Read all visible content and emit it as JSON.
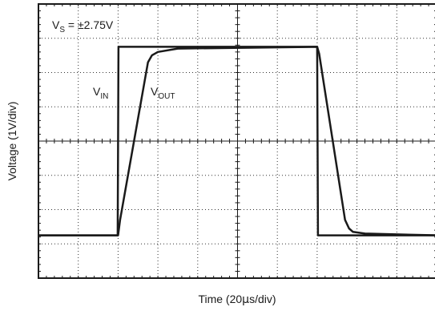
{
  "chart_data": {
    "type": "line",
    "annotation": {
      "main": "V",
      "sub": "S",
      "tail": " = ±2.75V"
    },
    "xlabel": {
      "before": "Time (20",
      "mu": "μ",
      "after": "s/div)"
    },
    "ylabel": "Voltage (1V/div)",
    "xlim": [
      0,
      10
    ],
    "ylim": [
      -4,
      4
    ],
    "grid": true,
    "grid_divisions": {
      "x": 10,
      "y": 8
    },
    "series": [
      {
        "name": {
          "main": "V",
          "sub": "IN"
        },
        "x": [
          0,
          1.99,
          2.0,
          2.01,
          7.0,
          7.01,
          7.02,
          10
        ],
        "y": [
          -2.75,
          -2.75,
          0,
          2.75,
          2.75,
          0,
          -2.75,
          -2.75
        ],
        "color": "#1a1a1a"
      },
      {
        "name": {
          "main": "V",
          "sub": "OUT"
        },
        "x": [
          0,
          2.0,
          2.05,
          2.4,
          2.75,
          2.85,
          3.0,
          3.5,
          7.0,
          7.05,
          7.7,
          7.8,
          7.9,
          8.2,
          10
        ],
        "y": [
          -2.75,
          -2.75,
          -2.3,
          0,
          2.3,
          2.5,
          2.6,
          2.7,
          2.75,
          2.55,
          -2.3,
          -2.55,
          -2.65,
          -2.7,
          -2.75
        ],
        "color": "#1a1a1a"
      }
    ]
  }
}
